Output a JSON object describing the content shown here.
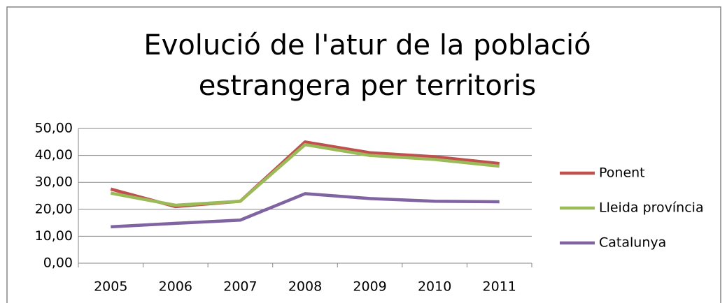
{
  "chart_data": {
    "type": "line",
    "title": "Evolució de l'atur de la població estrangera per territoris",
    "categories": [
      "2005",
      "2006",
      "2007",
      "2008",
      "2009",
      "2010",
      "2011"
    ],
    "series": [
      {
        "name": "Ponent",
        "color": "#c0504d",
        "values": [
          27.5,
          21,
          23,
          45,
          41,
          39.5,
          37
        ]
      },
      {
        "name": "Lleida província",
        "color": "#9bbb59",
        "values": [
          26,
          21.5,
          23,
          44,
          40,
          38.5,
          36
        ]
      },
      {
        "name": "Catalunya",
        "color": "#8064a2",
        "values": [
          13.5,
          14.8,
          16,
          25.8,
          24,
          23,
          22.8
        ]
      }
    ],
    "ylim": [
      0,
      50
    ],
    "yticks": [
      {
        "value": 0,
        "label": "0,00"
      },
      {
        "value": 10,
        "label": "10,00"
      },
      {
        "value": 20,
        "label": "20,00"
      },
      {
        "value": 30,
        "label": "30,00"
      },
      {
        "value": 40,
        "label": "40,00"
      },
      {
        "value": 50,
        "label": "50,00"
      }
    ],
    "grid": true,
    "legend": "right"
  }
}
